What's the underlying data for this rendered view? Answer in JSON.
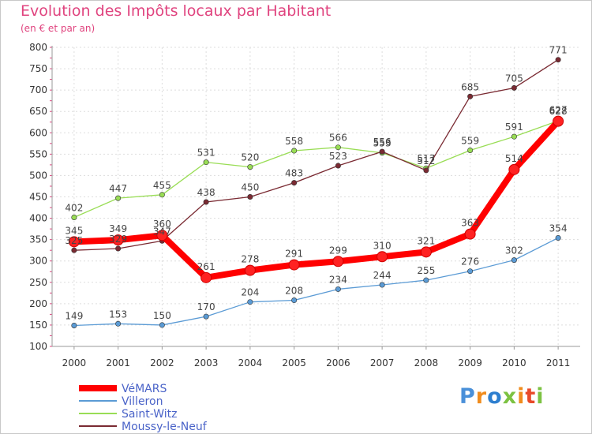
{
  "chart_data": {
    "type": "line",
    "title": "Evolution des Impôts locaux par Habitant",
    "subtitle": "(en € et par an)",
    "x": [
      "2000",
      "2001",
      "2002",
      "2003",
      "2004",
      "2005",
      "2006",
      "2007",
      "2008",
      "2009",
      "2010",
      "2011"
    ],
    "ylim": [
      100,
      800
    ],
    "yticks": [
      100,
      150,
      200,
      250,
      300,
      350,
      400,
      450,
      500,
      550,
      600,
      650,
      700,
      750,
      800
    ],
    "grid": true,
    "legend_position": "bottom-left",
    "series": [
      {
        "name": "VéMARS",
        "color": "#ff0000",
        "values": [
          345,
          349,
          360,
          261,
          278,
          291,
          299,
          310,
          321,
          363,
          514,
          627
        ]
      },
      {
        "name": "Villeron",
        "color": "#5b9bd5",
        "values": [
          149,
          153,
          150,
          170,
          204,
          208,
          234,
          244,
          255,
          276,
          302,
          354
        ]
      },
      {
        "name": "Saint-Witz",
        "color": "#99dd55",
        "values": [
          402,
          447,
          455,
          531,
          520,
          558,
          566,
          553,
          517,
          559,
          591,
          628
        ]
      },
      {
        "name": "Moussy-le-Neuf",
        "color": "#7a2a32",
        "values": [
          325,
          329,
          347,
          438,
          450,
          483,
          523,
          556,
          512,
          685,
          705,
          771
        ]
      }
    ]
  },
  "branding": {
    "text": "Proxiti",
    "letter_colors": [
      "#4a90d9",
      "#f08c1e",
      "#2e7fcf",
      "#7cc242",
      "#f08c1e",
      "#e84a2a",
      "#7cc242"
    ]
  }
}
